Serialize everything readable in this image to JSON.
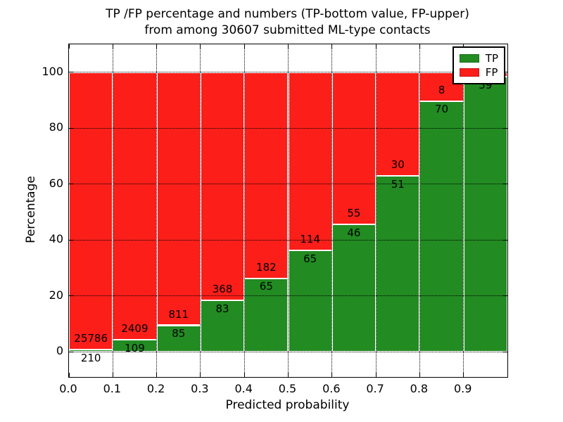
{
  "title": {
    "line1": "TP /FP percentage and numbers (TP-bottom value, FP-upper)",
    "line2": "from among 30607 submitted ML-type contacts"
  },
  "axes": {
    "x_label": "Predicted probability",
    "y_label": "Percentage"
  },
  "legend": {
    "entries": [
      {
        "label": "TP",
        "color": "#228b22",
        "edge": "#1a6b1a"
      },
      {
        "label": "FP",
        "color": "#fc1e19",
        "edge": "#c21512"
      }
    ]
  },
  "colors": {
    "tp": "#228b22",
    "fp": "#fc1e19",
    "bar_edge": "#ffffff",
    "grid": "#000000",
    "background": "#ffffff",
    "text": "#000000"
  },
  "chart_data": {
    "type": "bar",
    "stacked": true,
    "orientation": "vertical",
    "title": "TP /FP percentage and numbers (TP-bottom value, FP-upper) from among 30607 submitted ML-type contacts",
    "xlabel": "Predicted probability",
    "ylabel": "Percentage",
    "total_contacts": 30607,
    "grid": "dotted",
    "legend_position": "upper right",
    "xlim": [
      0.0,
      1.0
    ],
    "ylim": [
      -9,
      110
    ],
    "bin_width": 0.1,
    "x_tick_labels": [
      "0.0",
      "0.1",
      "0.2",
      "0.3",
      "0.4",
      "0.5",
      "0.6",
      "0.7",
      "0.8",
      "0.9"
    ],
    "y_tick_labels": [
      "0",
      "20",
      "40",
      "60",
      "80",
      "100"
    ],
    "series": [
      {
        "name": "TP",
        "color": "#228b22"
      },
      {
        "name": "FP",
        "color": "#fc1e19"
      }
    ],
    "bars": [
      {
        "x_range": "0.0-0.1",
        "tp_count": 210,
        "fp_count": 25786,
        "tp_pct": 0.81,
        "fp_pct": 99.19
      },
      {
        "x_range": "0.1-0.2",
        "tp_count": 109,
        "fp_count": 2409,
        "tp_pct": 4.33,
        "fp_pct": 95.67
      },
      {
        "x_range": "0.2-0.3",
        "tp_count": 85,
        "fp_count": 811,
        "tp_pct": 9.49,
        "fp_pct": 90.51
      },
      {
        "x_range": "0.3-0.4",
        "tp_count": 83,
        "fp_count": 368,
        "tp_pct": 18.4,
        "fp_pct": 81.6
      },
      {
        "x_range": "0.4-0.5",
        "tp_count": 65,
        "fp_count": 182,
        "tp_pct": 26.32,
        "fp_pct": 73.68
      },
      {
        "x_range": "0.5-0.6",
        "tp_count": 65,
        "fp_count": 114,
        "tp_pct": 36.31,
        "fp_pct": 63.69
      },
      {
        "x_range": "0.6-0.7",
        "tp_count": 46,
        "fp_count": 55,
        "tp_pct": 45.54,
        "fp_pct": 54.46
      },
      {
        "x_range": "0.7-0.8",
        "tp_count": 51,
        "fp_count": 30,
        "tp_pct": 62.96,
        "fp_pct": 37.04
      },
      {
        "x_range": "0.8-0.9",
        "tp_count": 70,
        "fp_count": 8,
        "tp_pct": 89.74,
        "fp_pct": 10.26
      },
      {
        "x_range": "0.9-1.0",
        "tp_count": 59,
        "fp_count": null,
        "tp_pct": 98.33,
        "fp_pct": 1.67
      }
    ]
  }
}
